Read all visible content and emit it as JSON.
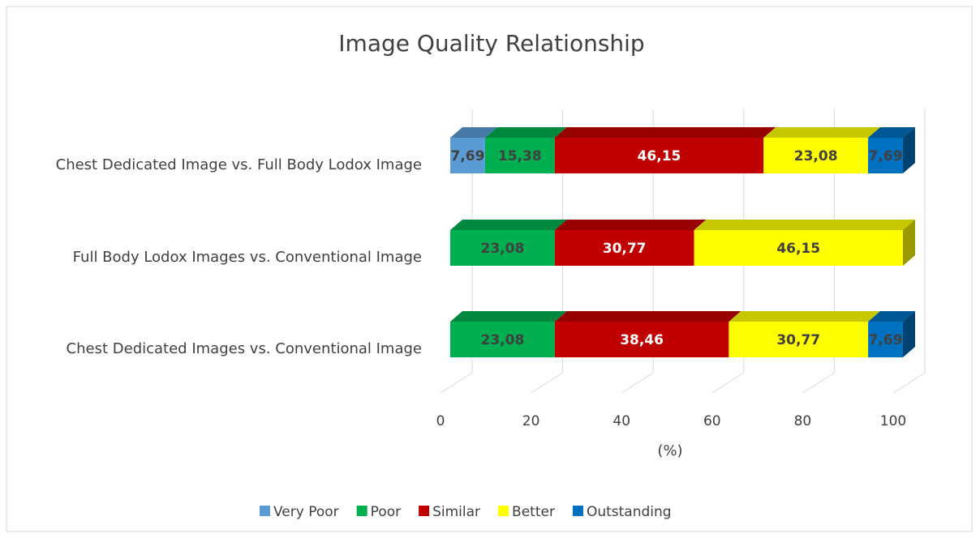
{
  "chart_data": {
    "type": "bar3d_stacked_horizontal",
    "title": "Image Quality Relationship",
    "x_label": "(%)",
    "categories": [
      "Chest Dedicated Image vs. Full Body Lodox Image",
      "Full Body Lodox Images vs. Conventional Image",
      "Chest Dedicated Images vs. Conventional Image"
    ],
    "series": [
      {
        "name": "Very Poor",
        "color": "#5b9bd5",
        "values": [
          7.69,
          null,
          null
        ],
        "value_labels": [
          "7,69",
          null,
          null
        ]
      },
      {
        "name": "Poor",
        "color": "#00b050",
        "values": [
          15.38,
          23.08,
          23.08
        ],
        "value_labels": [
          "15,38",
          "23,08",
          "23,08"
        ]
      },
      {
        "name": "Similar",
        "color": "#c00000",
        "values": [
          46.15,
          30.77,
          38.46
        ],
        "value_labels": [
          "46,15",
          "30,77",
          "38,46"
        ]
      },
      {
        "name": "Better",
        "color": "#ffff00",
        "values": [
          23.08,
          46.15,
          30.77
        ],
        "value_labels": [
          "23,08",
          "46,15",
          "30,77"
        ]
      },
      {
        "name": "Outstanding",
        "color": "#0070c0",
        "values": [
          7.69,
          null,
          7.69
        ],
        "value_labels": [
          "7,69",
          null,
          "7,69"
        ]
      }
    ],
    "xlim": [
      0,
      100
    ],
    "xticks": [
      0,
      20,
      40,
      60,
      80,
      100
    ],
    "grid": true,
    "legend": "bottom"
  }
}
